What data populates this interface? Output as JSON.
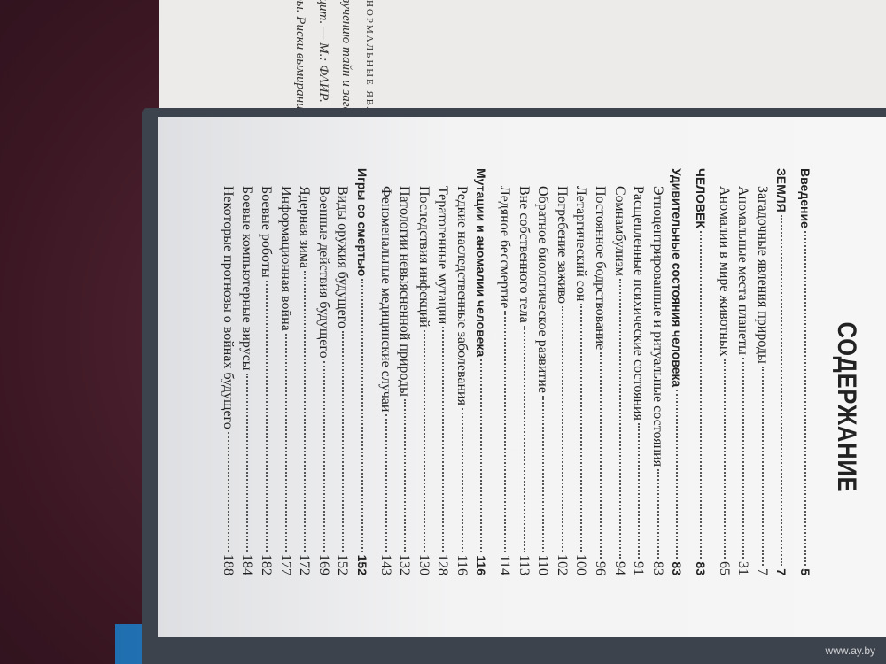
{
  "background_book": {
    "running_head": "АНОРМАЛЬНЫЕ ЯВЛЕНИЯ",
    "lines": [
      "изучению тайн и загадок",
      "ацит. — М.: ФАИР.",
      "фы. Риски вымирания"
    ]
  },
  "toc": {
    "title": "СОДЕРЖАНИЕ",
    "entries": [
      {
        "title": "Введение",
        "page": 5,
        "level": 0
      },
      {
        "title": "ЗЕМЛЯ",
        "page": 7,
        "level": 0
      },
      {
        "title": "Загадочные явления природы",
        "page": 7,
        "level": 2
      },
      {
        "title": "Аномальные места планеты",
        "page": 31,
        "level": 2
      },
      {
        "title": "Аномалии в мире животных",
        "page": 65,
        "level": 2
      },
      {
        "title": "ЧЕЛОВЕК",
        "page": 83,
        "level": 0
      },
      {
        "title": "Удивительные состояния человека",
        "page": 83,
        "level": 1
      },
      {
        "title": "Этноцентрированные и ритуальные состояния",
        "page": 83,
        "level": 2
      },
      {
        "title": "Расщепленные психические состояния",
        "page": 91,
        "level": 2
      },
      {
        "title": "Сомнамбулизм",
        "page": 94,
        "level": 2
      },
      {
        "title": "Постоянное бодрствование",
        "page": 96,
        "level": 2
      },
      {
        "title": "Летаргический сон",
        "page": 100,
        "level": 2
      },
      {
        "title": "Погребение заживо",
        "page": 102,
        "level": 2
      },
      {
        "title": "Обратное биологическое развитие",
        "page": 110,
        "level": 2
      },
      {
        "title": "Вне собственного тела",
        "page": 113,
        "level": 2
      },
      {
        "title": "Ледяное бессмертие",
        "page": 114,
        "level": 2
      },
      {
        "title": "Мутации и аномалии человека",
        "page": 116,
        "level": 1
      },
      {
        "title": "Редкие наследственные заболевания",
        "page": 116,
        "level": 2
      },
      {
        "title": "Тератогенные мутации",
        "page": 128,
        "level": 2
      },
      {
        "title": "Последствия инфекций",
        "page": 130,
        "level": 2
      },
      {
        "title": "Патологии невыясненной природы",
        "page": 132,
        "level": 2
      },
      {
        "title": "Феноменальные медицинские случаи",
        "page": 143,
        "level": 2
      },
      {
        "title": "Игры со смертью",
        "page": 152,
        "level": 1
      },
      {
        "title": "Виды оружия будущего",
        "page": 152,
        "level": 2
      },
      {
        "title": "Военные действия будущего",
        "page": 169,
        "level": 2
      },
      {
        "title": "Ядерная зима",
        "page": 172,
        "level": 2
      },
      {
        "title": "Информационная война",
        "page": 177,
        "level": 2
      },
      {
        "title": "Боевые роботы",
        "page": 182,
        "level": 2
      },
      {
        "title": "Боевые компьютерные вирусы",
        "page": 184,
        "level": 2
      },
      {
        "title": "Некоторые прогнозы о войнах будущего",
        "page": 188,
        "level": 2
      }
    ]
  },
  "watermark": "www.ay.by"
}
